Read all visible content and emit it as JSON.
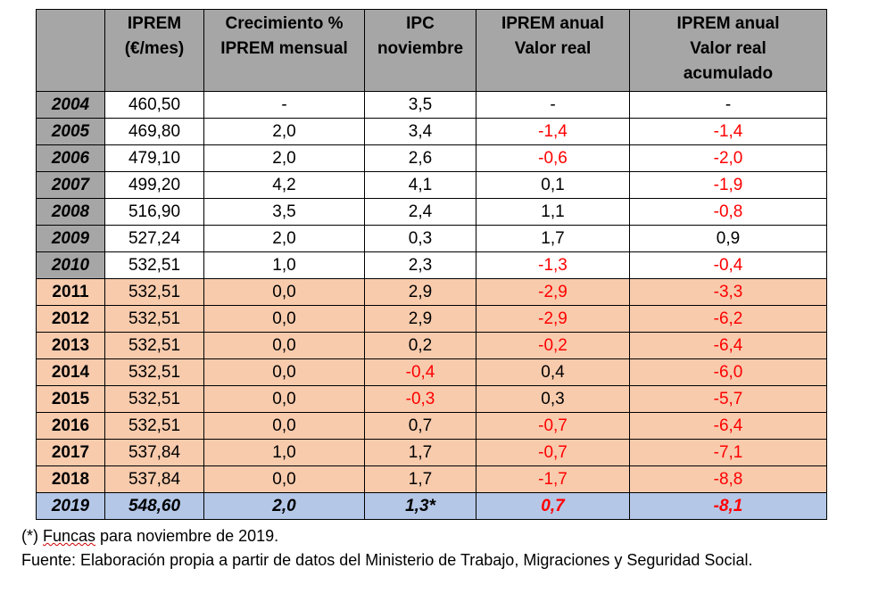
{
  "headers": [
    "",
    "IPREM\n(€/mes)",
    "Crecimiento %\nIPREM mensual",
    "IPC\nnoviembre",
    "IPREM anual\nValor real",
    "IPREM anual\nValor real\nacumulado"
  ],
  "colors": {
    "header": "#a6a6a6",
    "peach": "#f8cbad",
    "blue": "#b4c7e7",
    "negative": "#ff0000"
  },
  "rows": [
    {
      "style": "gray",
      "cells": [
        "2004",
        "460,50",
        "-",
        "3,5",
        "-",
        "-"
      ],
      "red": []
    },
    {
      "style": "gray",
      "cells": [
        "2005",
        "469,80",
        "2,0",
        "3,4",
        "-1,4",
        "-1,4"
      ],
      "red": [
        4,
        5
      ]
    },
    {
      "style": "gray",
      "cells": [
        "2006",
        "479,10",
        "2,0",
        "2,6",
        "-0,6",
        "-2,0"
      ],
      "red": [
        4,
        5
      ]
    },
    {
      "style": "gray",
      "cells": [
        "2007",
        "499,20",
        "4,2",
        "4,1",
        "0,1",
        "-1,9"
      ],
      "red": [
        5
      ]
    },
    {
      "style": "gray",
      "cells": [
        "2008",
        "516,90",
        "3,5",
        "2,4",
        "1,1",
        "-0,8"
      ],
      "red": [
        5
      ]
    },
    {
      "style": "gray",
      "cells": [
        "2009",
        "527,24",
        "2,0",
        "0,3",
        "1,7",
        "0,9"
      ],
      "red": []
    },
    {
      "style": "gray",
      "cells": [
        "2010",
        "532,51",
        "1,0",
        "2,3",
        "-1,3",
        "-0,4"
      ],
      "red": [
        4,
        5
      ]
    },
    {
      "style": "peach",
      "cells": [
        "2011",
        "532,51",
        "0,0",
        "2,9",
        "-2,9",
        "-3,3"
      ],
      "red": [
        4,
        5
      ]
    },
    {
      "style": "peach",
      "cells": [
        "2012",
        "532,51",
        "0,0",
        "2,9",
        "-2,9",
        "-6,2"
      ],
      "red": [
        4,
        5
      ]
    },
    {
      "style": "peach",
      "cells": [
        "2013",
        "532,51",
        "0,0",
        "0,2",
        "-0,2",
        "-6,4"
      ],
      "red": [
        4,
        5
      ]
    },
    {
      "style": "peach",
      "cells": [
        "2014",
        "532,51",
        "0,0",
        "-0,4",
        "0,4",
        "-6,0"
      ],
      "red": [
        3,
        5
      ]
    },
    {
      "style": "peach",
      "cells": [
        "2015",
        "532,51",
        "0,0",
        "-0,3",
        "0,3",
        "-5,7"
      ],
      "red": [
        3,
        5
      ]
    },
    {
      "style": "peach",
      "cells": [
        "2016",
        "532,51",
        "0,0",
        "0,7",
        "-0,7",
        "-6,4"
      ],
      "red": [
        4,
        5
      ]
    },
    {
      "style": "peach",
      "cells": [
        "2017",
        "537,84",
        "1,0",
        "1,7",
        "-0,7",
        "-7,1"
      ],
      "red": [
        4,
        5
      ]
    },
    {
      "style": "peach",
      "cells": [
        "2018",
        "537,84",
        "0,0",
        "1,7",
        "-1,7",
        "-8,8"
      ],
      "red": [
        4,
        5
      ]
    },
    {
      "style": "blue",
      "cells": [
        "2019",
        "548,60",
        "2,0",
        "1,3*",
        "0,7",
        "-8,1"
      ],
      "red": [
        4,
        5
      ]
    }
  ],
  "notes": {
    "note_prefix": "(*) ",
    "note_word": "Funcas",
    "note_rest": " para noviembre de 2019.",
    "source": "Fuente: Elaboración propia a partir de datos del Ministerio de Trabajo, Migraciones y Seguridad Social."
  }
}
